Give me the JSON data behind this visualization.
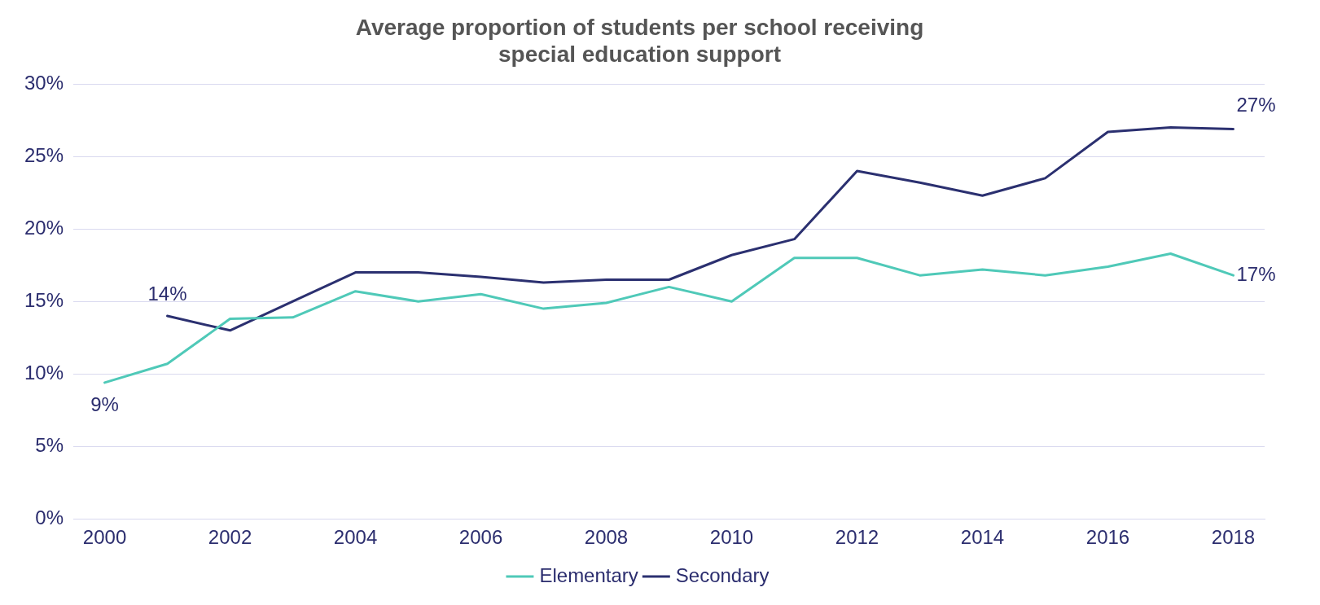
{
  "chart_data": {
    "type": "line",
    "title": [
      "Average proportion of students per school receiving",
      "special education support"
    ],
    "categories": [
      "2000",
      null,
      "2002",
      null,
      "2004",
      null,
      "2006",
      null,
      "2008",
      null,
      "2010",
      null,
      "2012",
      null,
      "2014",
      null,
      "2016",
      null,
      "2018"
    ],
    "series": [
      {
        "name": "Elementary",
        "color": "#4fc9b8",
        "values": [
          9.4,
          10.7,
          13.8,
          13.9,
          15.7,
          15.0,
          15.5,
          14.5,
          14.9,
          16.0,
          15.0,
          18.0,
          18.0,
          16.8,
          17.2,
          16.8,
          17.4,
          18.3,
          16.8
        ],
        "value_labels": [
          "9%",
          null,
          null,
          null,
          null,
          null,
          null,
          null,
          null,
          null,
          null,
          null,
          null,
          null,
          null,
          null,
          null,
          null,
          "17%"
        ]
      },
      {
        "name": "Secondary",
        "color": "#2b3070",
        "values": [
          null,
          14.0,
          13.0,
          15.0,
          17.0,
          17.0,
          16.7,
          16.3,
          16.5,
          16.5,
          18.2,
          19.3,
          24.0,
          23.2,
          22.3,
          23.5,
          26.7,
          27.0,
          26.9
        ],
        "value_labels": [
          null,
          "14%",
          null,
          null,
          null,
          null,
          null,
          null,
          null,
          null,
          null,
          null,
          null,
          null,
          null,
          null,
          null,
          null,
          "27%"
        ]
      }
    ],
    "ylim": [
      0,
      30
    ],
    "yticks": [
      {
        "value": 0,
        "label": "0%"
      },
      {
        "value": 5,
        "label": "5%"
      },
      {
        "value": 10,
        "label": "10%"
      },
      {
        "value": 15,
        "label": "15%"
      },
      {
        "value": 20,
        "label": "20%"
      },
      {
        "value": 25,
        "label": "25%"
      },
      {
        "value": 30,
        "label": "30%"
      }
    ],
    "grid": "y",
    "legend": "bottom",
    "marker": "none",
    "line_style": "solid"
  }
}
